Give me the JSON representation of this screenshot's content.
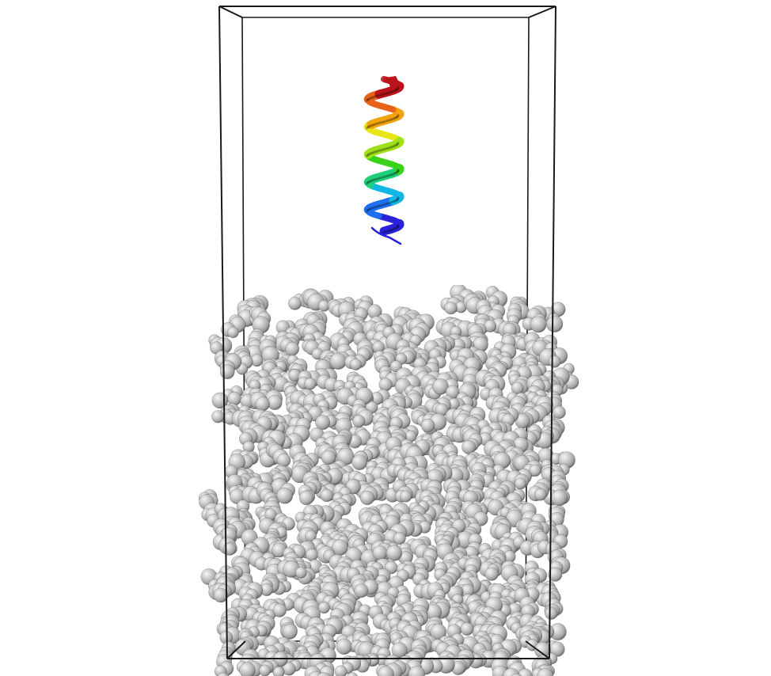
{
  "scene": {
    "background_color": "#ffffff",
    "box_edge_color": "#1a1a1a",
    "helix_palette": [
      "#2a22d6",
      "#1f6ff0",
      "#12b7e6",
      "#1fcf7a",
      "#3ad21b",
      "#9fe01a",
      "#e6e619",
      "#f2a410",
      "#e8621a",
      "#b8141a"
    ],
    "molecule_color": "#bdbdbd",
    "molecule_shadow_color": "#5c5c5c",
    "molecule_highlight_color": "#f4f4f4"
  }
}
